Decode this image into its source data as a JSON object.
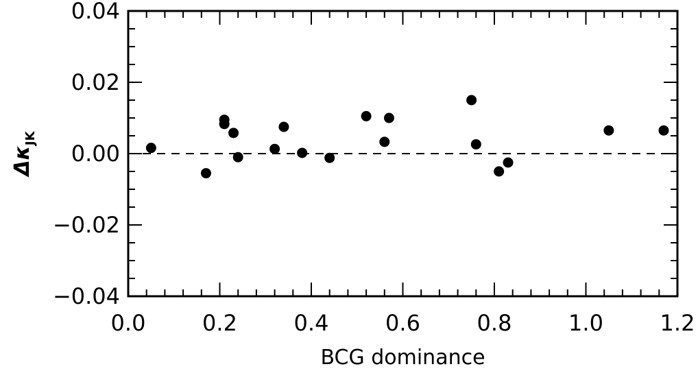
{
  "chart_data": {
    "type": "scatter",
    "title": "",
    "xlabel": "BCG dominance",
    "ylabel": {
      "main": "Δκ",
      "subscript": "JK"
    },
    "xlim": [
      0.0,
      1.2
    ],
    "ylim": [
      -0.04,
      0.04
    ],
    "x_ticks": [
      0.0,
      0.2,
      0.4,
      0.6,
      0.8,
      1.0,
      1.2
    ],
    "x_tick_labels": [
      "0.0",
      "0.2",
      "0.4",
      "0.6",
      "0.8",
      "1.0",
      "1.2"
    ],
    "y_ticks": [
      0.04,
      0.02,
      0.0,
      -0.02,
      -0.04
    ],
    "y_tick_labels": [
      "0.04",
      "0.02",
      "0.00",
      "−0.02",
      "−0.04"
    ],
    "reference_line": {
      "y": 0.0,
      "style": "dashed"
    },
    "grid": false,
    "marker_color": "#000000",
    "points": [
      {
        "x": 0.05,
        "y": 0.0016
      },
      {
        "x": 0.17,
        "y": -0.0055
      },
      {
        "x": 0.21,
        "y": 0.0095
      },
      {
        "x": 0.21,
        "y": 0.0083
      },
      {
        "x": 0.23,
        "y": 0.0058
      },
      {
        "x": 0.24,
        "y": -0.001
      },
      {
        "x": 0.32,
        "y": 0.0013
      },
      {
        "x": 0.34,
        "y": 0.0075
      },
      {
        "x": 0.38,
        "y": 0.0002
      },
      {
        "x": 0.44,
        "y": -0.0012
      },
      {
        "x": 0.52,
        "y": 0.0105
      },
      {
        "x": 0.56,
        "y": 0.0033
      },
      {
        "x": 0.57,
        "y": 0.01
      },
      {
        "x": 0.75,
        "y": 0.015
      },
      {
        "x": 0.76,
        "y": 0.0026
      },
      {
        "x": 0.81,
        "y": -0.005
      },
      {
        "x": 0.83,
        "y": -0.0025
      },
      {
        "x": 1.05,
        "y": 0.0065
      },
      {
        "x": 1.17,
        "y": 0.0065
      }
    ]
  }
}
